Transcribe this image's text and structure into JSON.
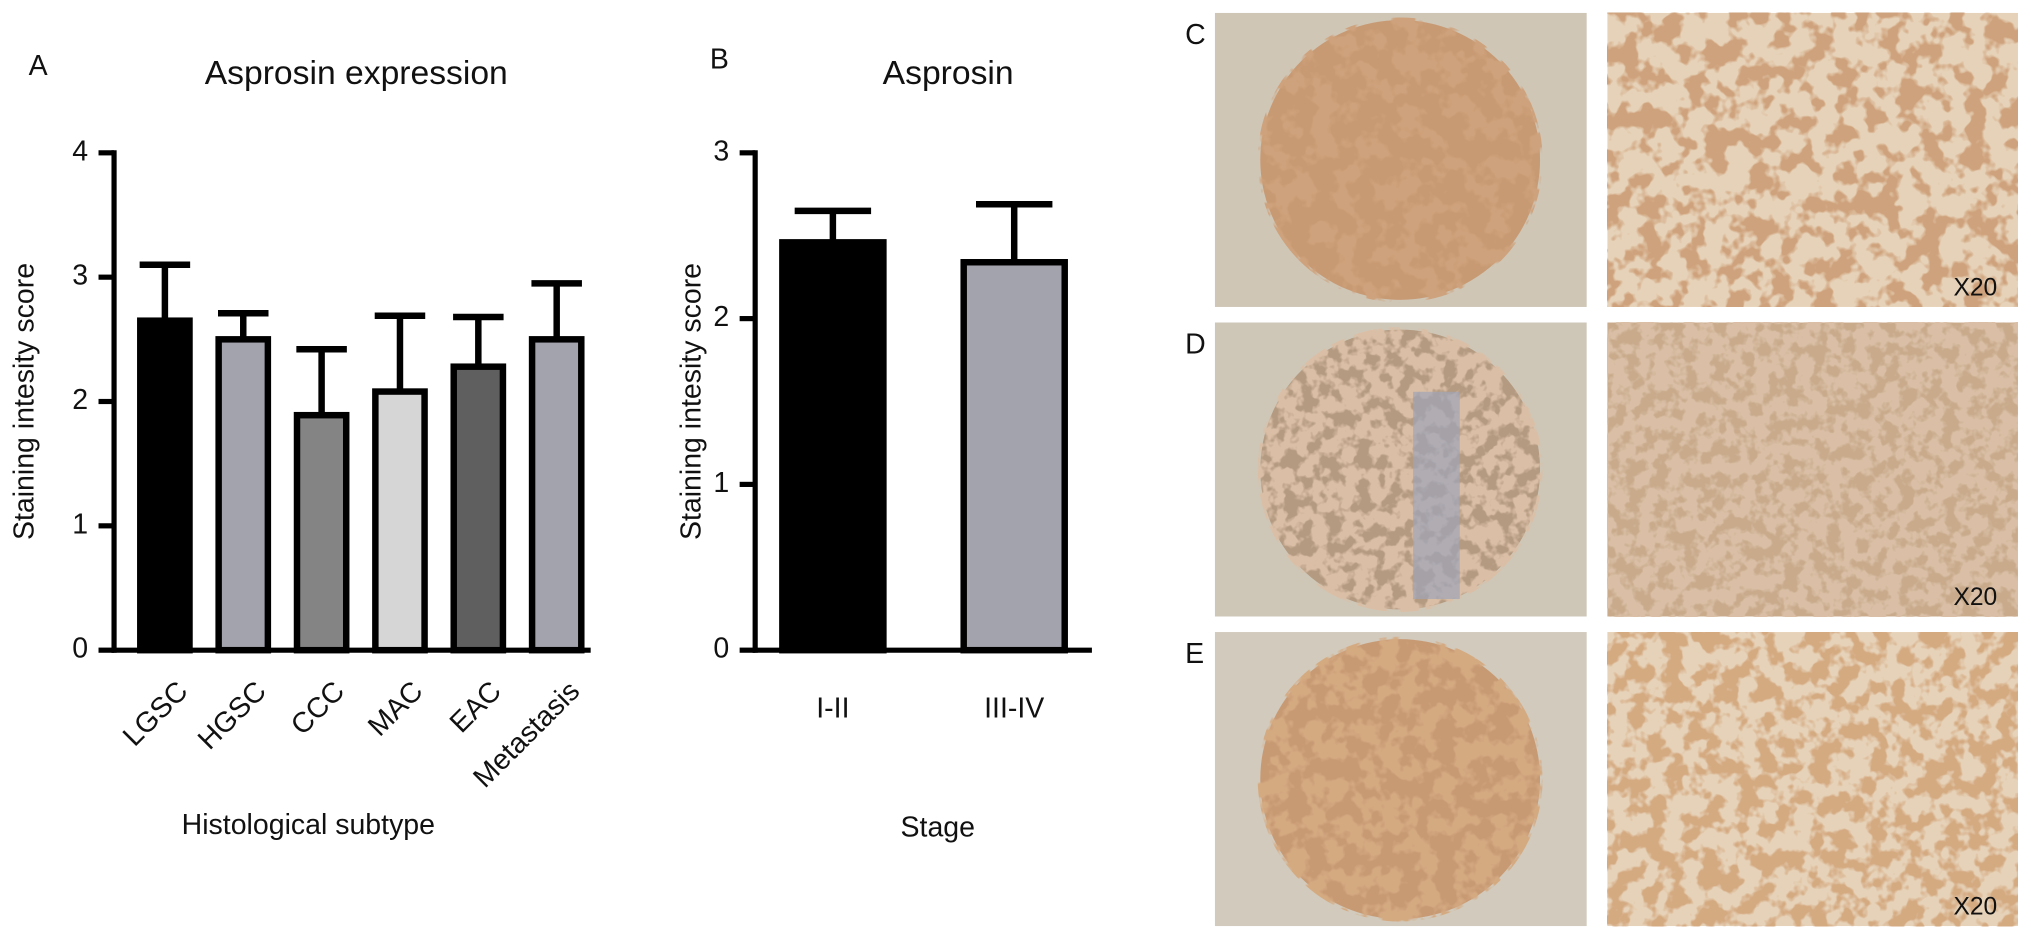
{
  "chart_data": [
    {
      "type": "bar",
      "panel": "A",
      "title": "Asprosin expression",
      "xlabel": "Histological subtype",
      "ylabel": "Staining intesity score",
      "categories": [
        "LGSC",
        "HGSC",
        "CCC",
        "MAC",
        "EAC",
        "Metastasis"
      ],
      "values": [
        2.65,
        2.5,
        1.89,
        2.08,
        2.28,
        2.5
      ],
      "errors": [
        0.45,
        0.21,
        0.53,
        0.61,
        0.4,
        0.45
      ],
      "colors": [
        "#000000",
        "#a3a3ad",
        "#848484",
        "#d6d6d6",
        "#5f5f5f",
        "#a3a3ad"
      ],
      "ylim": [
        0,
        4
      ],
      "yticks": [
        0,
        1,
        2,
        3,
        4
      ]
    },
    {
      "type": "bar",
      "panel": "B",
      "title": "Asprosin",
      "xlabel": "Stage",
      "ylabel": "Staining intesity score",
      "categories": [
        "I-II",
        "III-IV"
      ],
      "values": [
        2.46,
        2.34
      ],
      "errors": [
        0.19,
        0.35
      ],
      "colors": [
        "#000000",
        "#a3a3ad"
      ],
      "ylim": [
        0,
        3
      ],
      "yticks": [
        0,
        1,
        2,
        3
      ]
    }
  ],
  "micrographs": [
    {
      "label": "C",
      "magnification": "X20"
    },
    {
      "label": "D",
      "magnification": "X20"
    },
    {
      "label": "E",
      "magnification": "X20"
    }
  ]
}
